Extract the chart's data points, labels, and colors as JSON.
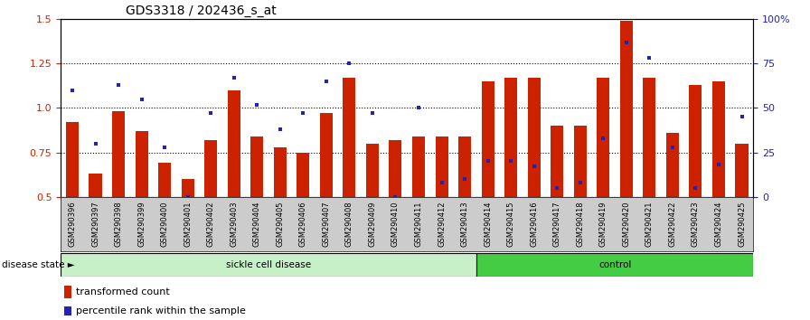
{
  "title": "GDS3318 / 202436_s_at",
  "samples": [
    "GSM290396",
    "GSM290397",
    "GSM290398",
    "GSM290399",
    "GSM290400",
    "GSM290401",
    "GSM290402",
    "GSM290403",
    "GSM290404",
    "GSM290405",
    "GSM290406",
    "GSM290407",
    "GSM290408",
    "GSM290409",
    "GSM290410",
    "GSM290411",
    "GSM290412",
    "GSM290413",
    "GSM290414",
    "GSM290415",
    "GSM290416",
    "GSM290417",
    "GSM290418",
    "GSM290419",
    "GSM290420",
    "GSM290421",
    "GSM290422",
    "GSM290423",
    "GSM290424",
    "GSM290425"
  ],
  "bar_values": [
    0.92,
    0.63,
    0.98,
    0.87,
    0.69,
    0.6,
    0.82,
    1.1,
    0.84,
    0.78,
    0.75,
    0.97,
    1.17,
    0.8,
    0.82,
    0.84,
    0.84,
    0.84,
    1.15,
    1.17,
    1.17,
    0.9,
    0.9,
    1.17,
    1.49,
    1.17,
    0.86,
    1.13,
    1.15,
    0.8
  ],
  "scatter_percentile": [
    60,
    30,
    63,
    55,
    28,
    0,
    47,
    67,
    52,
    38,
    47,
    65,
    75,
    47,
    0,
    50,
    8,
    10,
    20,
    20,
    17,
    5,
    8,
    33,
    87,
    78,
    28,
    5,
    18,
    45
  ],
  "ylim_left": [
    0.5,
    1.5
  ],
  "ylim_right": [
    0,
    100
  ],
  "yticks_left": [
    0.5,
    0.75,
    1.0,
    1.25,
    1.5
  ],
  "yticks_right": [
    0,
    25,
    50,
    75,
    100
  ],
  "ytick_labels_right": [
    "0",
    "25",
    "50",
    "75",
    "100%"
  ],
  "bar_color": "#cc2200",
  "scatter_color": "#2222bb",
  "group1_label": "sickle cell disease",
  "group2_label": "control",
  "group1_count": 18,
  "group2_count": 12,
  "legend_bar_label": "transformed count",
  "legend_scatter_label": "percentile rank within the sample",
  "disease_state_label": "disease state",
  "hlines": [
    0.75,
    1.0,
    1.25
  ],
  "bg_group1": "#c8f0c8",
  "bg_group2": "#44cc44",
  "title_fontsize": 10,
  "tick_fontsize": 6
}
